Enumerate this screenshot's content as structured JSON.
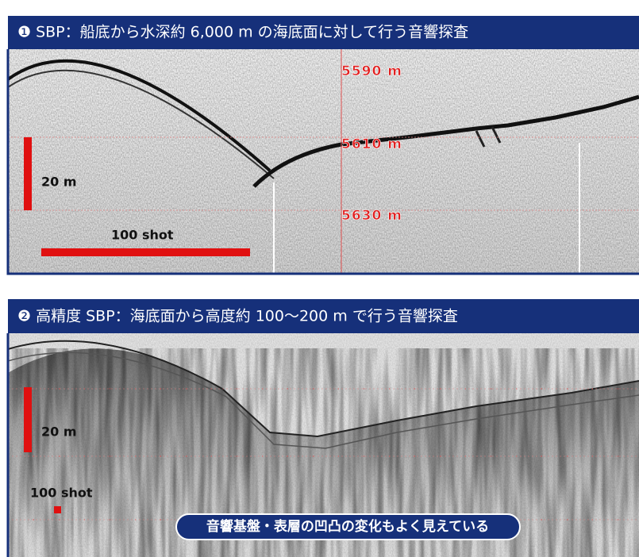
{
  "panels": [
    {
      "header": "❶ SBP：船底から水深約 6,000 m の海底面に対して行う音響探査",
      "depth_labels": [
        "5590 m",
        "5610 m",
        "5630 m"
      ],
      "vertical_scale": "20 m",
      "horizontal_scale": "100 shot"
    },
    {
      "header": "❷ 高精度 SBP：海底面から高度約 100〜200 m で行う音響探査",
      "vertical_scale": "20 m",
      "horizontal_scale": "100 shot",
      "note": "音響基盤・表層の凹凸の変化もよく見えている"
    }
  ]
}
